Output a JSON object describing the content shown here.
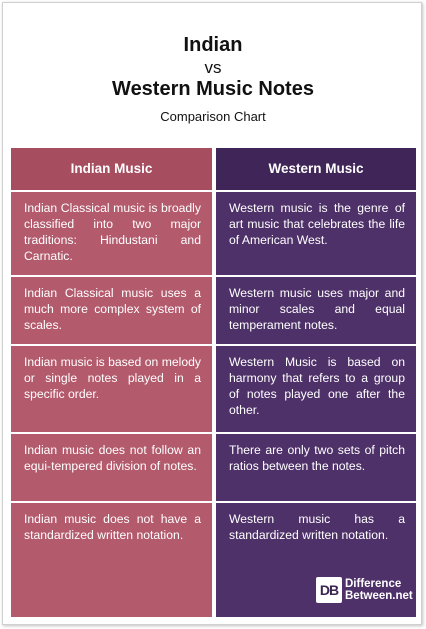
{
  "header": {
    "title_line1": "Indian",
    "vs": "vs",
    "title_line2": "Western Music Notes",
    "subtitle": "Comparison Chart"
  },
  "table": {
    "columns": [
      "Indian Music",
      "Western Music"
    ],
    "rows": [
      [
        "Indian Classical music is broadly classified into two major traditions: Hindustani and Carnatic.",
        "Western music is the genre of art music that celebrates the life of American West."
      ],
      [
        "Indian Classical music uses a much more complex system of scales.",
        "Western music uses major and minor scales and equal temperament notes."
      ],
      [
        "Indian music is based on melody or single notes played in a specific order.",
        "Western Music is based on harmony that refers to a group of notes played one after the other."
      ],
      [
        "Indian music does not follow an equi-tempered division of notes.",
        "There are only two sets of pitch ratios between the notes."
      ],
      [
        "Indian music does not have a standardized written notation.",
        "Western music has a standardized written notation."
      ]
    ]
  },
  "logo": {
    "mark": "DB",
    "line1": "Difference",
    "line2": "Between.net"
  },
  "colors": {
    "left_column": "#b35a6c",
    "right_column": "#4e3168"
  }
}
